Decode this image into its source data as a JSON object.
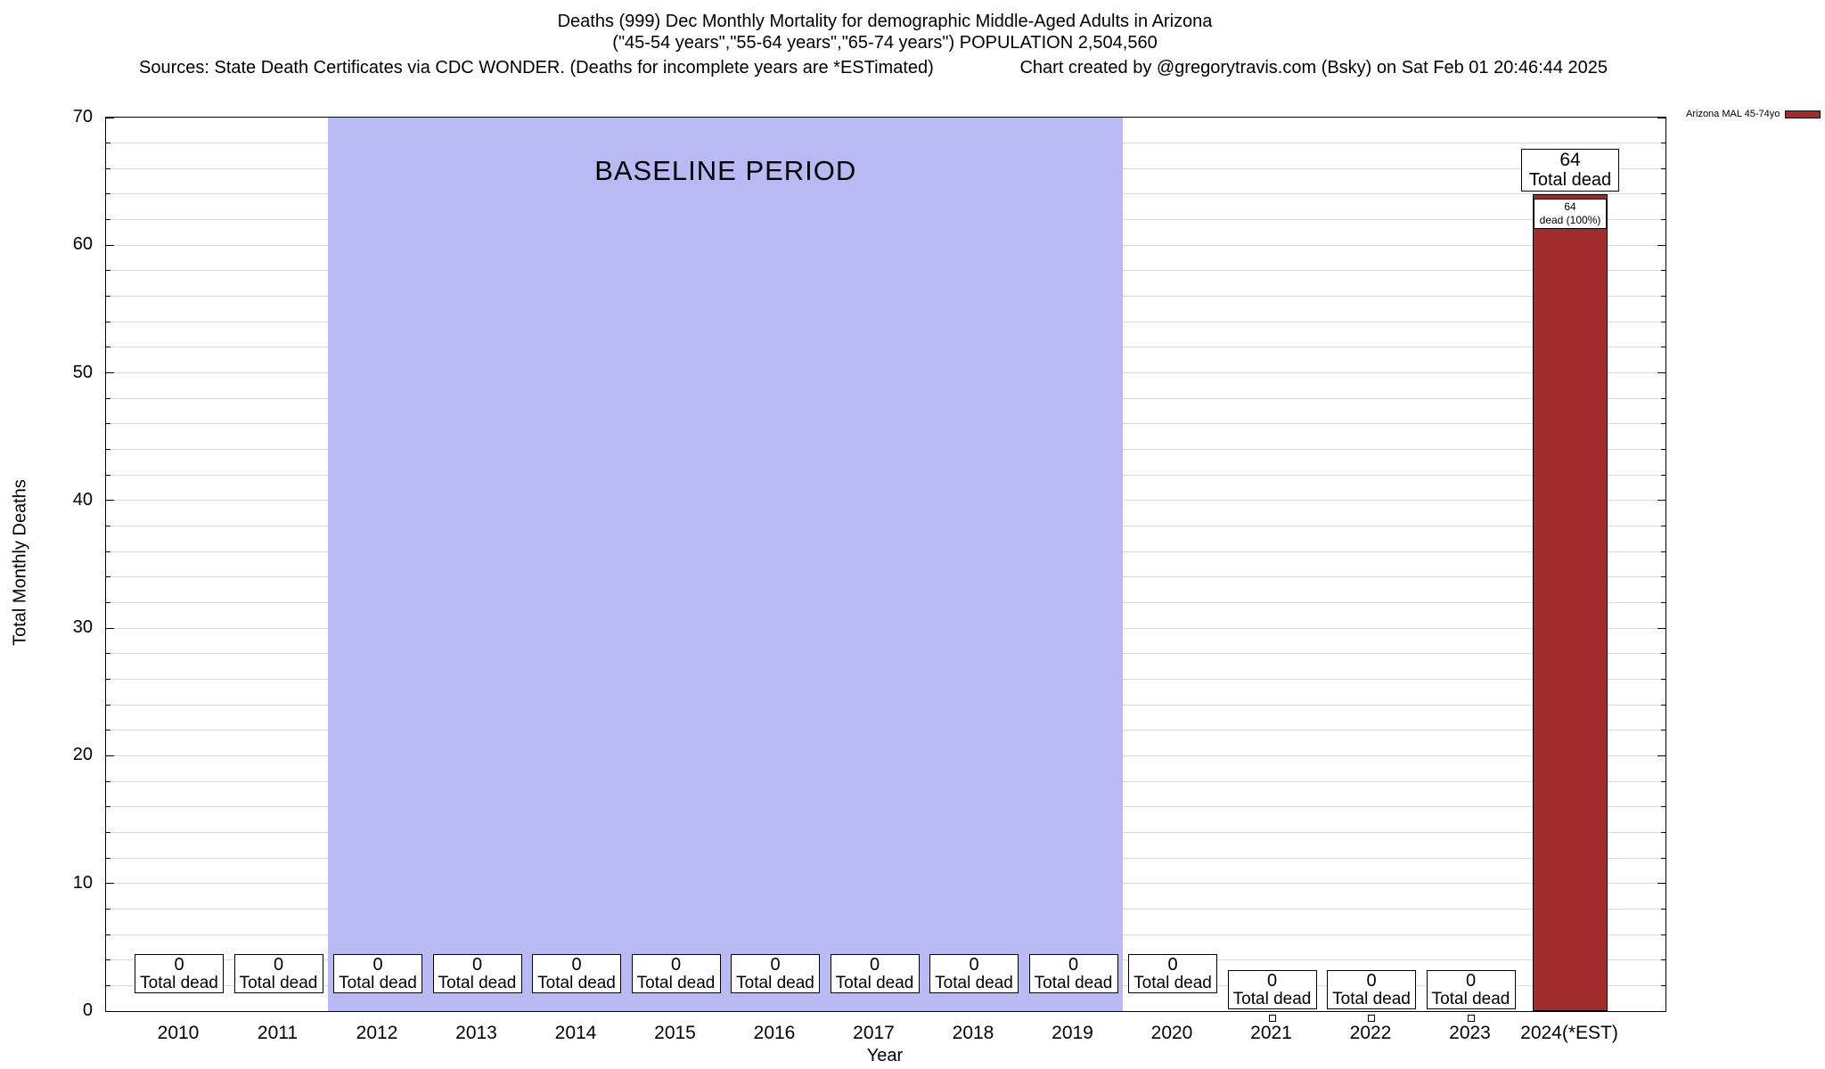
{
  "chart_data": {
    "type": "bar",
    "title": "Deaths (999) Dec Monthly Mortality for demographic Middle-Aged Adults in Arizona",
    "subtitle": "(\"45-54 years\",\"55-64 years\",\"65-74 years\") POPULATION 2,504,560",
    "sources_note": "Sources: State Death Certificates via CDC WONDER. (Deaths for incomplete years are *ESTimated)",
    "credit_note": "Chart created by @gregorytravis.com (Bsky) on Sat Feb 01 20:46:44 2025",
    "xlabel": "Year",
    "ylabel": "Total Monthly Deaths",
    "ylim": [
      0,
      70
    ],
    "y_major_step": 10,
    "y_minor_step": 2,
    "grid": true,
    "categories": [
      "2010",
      "2011",
      "2012",
      "2013",
      "2014",
      "2015",
      "2016",
      "2017",
      "2018",
      "2019",
      "2020",
      "2021",
      "2022",
      "2023",
      "2024(*EST)"
    ],
    "series": [
      {
        "name": "Arizona MAL 45-74yo",
        "color": "#a02c2c",
        "values": [
          0,
          0,
          0,
          0,
          0,
          0,
          0,
          0,
          0,
          0,
          0,
          0,
          0,
          0,
          64
        ]
      }
    ],
    "baseline_band": {
      "label": "BASELINE PERIOD",
      "start_category": "2012",
      "end_category": "2019",
      "color": "#b9b9f3"
    },
    "zero_annotation": {
      "value_line": "0",
      "label_line": "Total dead"
    },
    "offset_marker_categories": [
      "2021",
      "2022",
      "2023"
    ],
    "bar_annotation": {
      "outer_lines": [
        "64",
        "Total dead"
      ],
      "inner_lines": [
        "64",
        "dead (100%)"
      ]
    },
    "legend": {
      "position": "top-right",
      "entries": [
        {
          "label": "Arizona MAL 45-74yo",
          "color": "#a02c2c"
        }
      ]
    }
  }
}
